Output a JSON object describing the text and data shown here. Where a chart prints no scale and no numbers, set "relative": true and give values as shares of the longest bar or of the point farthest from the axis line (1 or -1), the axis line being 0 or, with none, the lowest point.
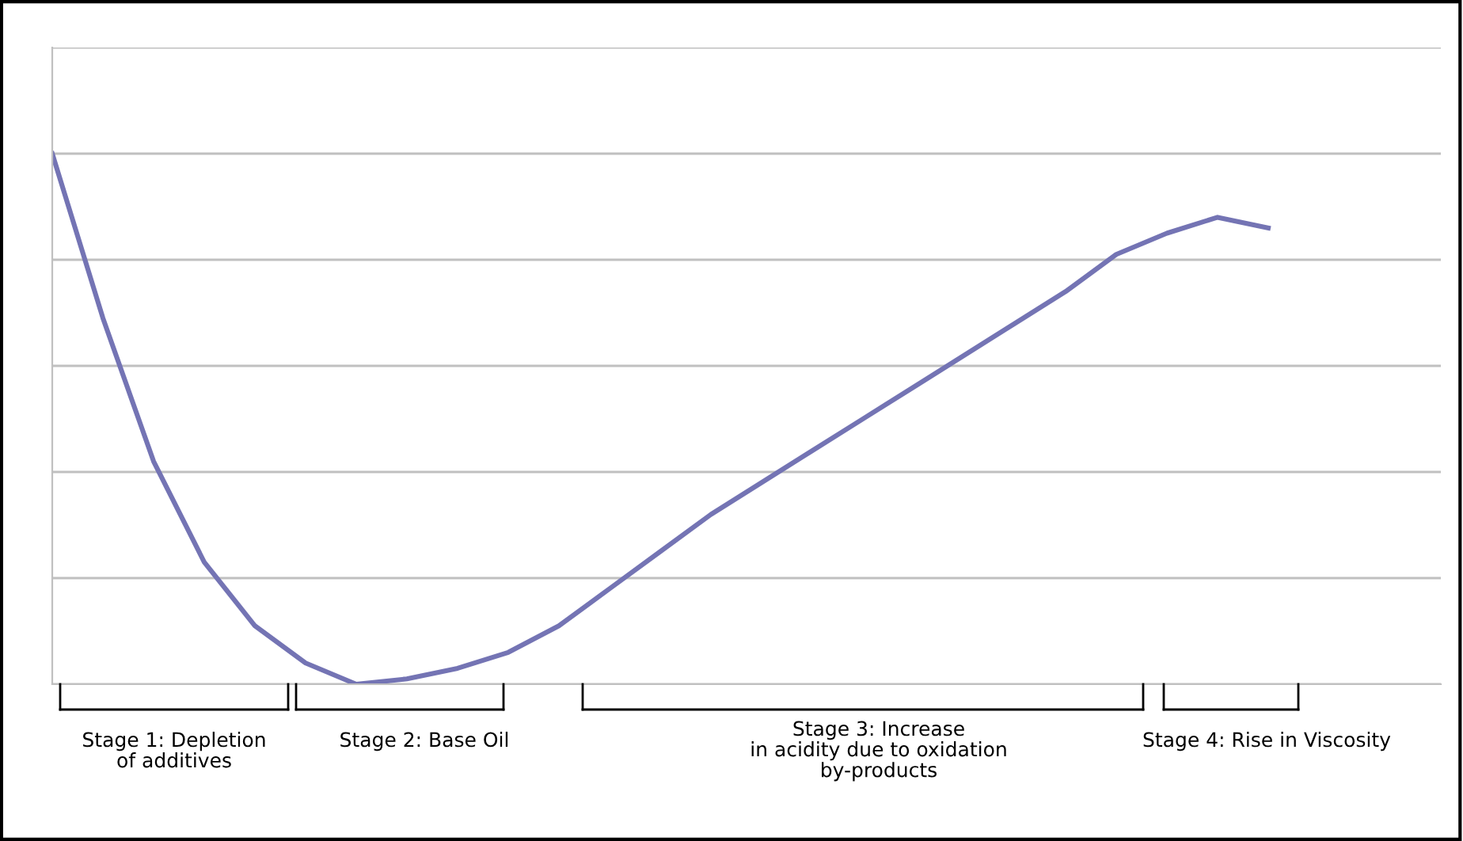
{
  "chart_data": {
    "type": "line",
    "relative": true,
    "grid": "y",
    "marker": "none",
    "line_style": "solid",
    "categories": [
      null,
      null,
      null,
      null,
      null,
      null,
      null,
      null,
      null,
      null,
      null,
      null,
      null,
      null,
      null,
      null,
      null,
      null,
      null,
      null,
      null,
      null,
      null,
      null,
      null
    ],
    "series": [
      {
        "color": "#7474b4",
        "values": [
          1.0,
          0.69,
          0.42,
          0.23,
          0.11,
          0.04,
          0.0,
          0.01,
          0.03,
          0.06,
          0.11,
          0.18,
          0.25,
          0.32,
          0.38,
          0.44,
          0.5,
          0.56,
          0.62,
          0.68,
          0.74,
          0.81,
          0.85,
          0.88,
          0.86
        ]
      }
    ],
    "annotations": [
      "Stage 1: Depletion\nof additives",
      "Stage 2: Base Oil",
      "Stage 3: Increase\nin acidity due to oxidation\nby-products",
      "Stage 4: Rise in Viscosity"
    ]
  }
}
